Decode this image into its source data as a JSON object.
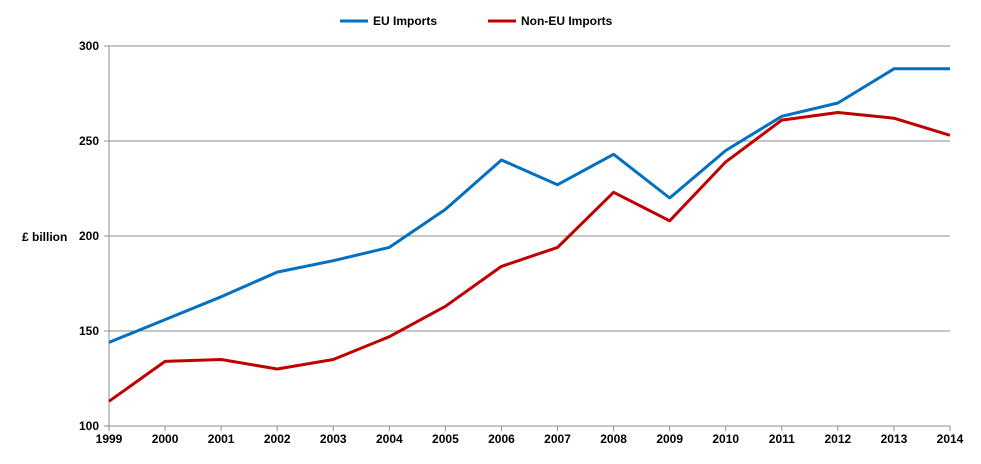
{
  "chart_data": {
    "type": "line",
    "title": "",
    "xlabel": "",
    "ylabel": "£ billion",
    "ylim": [
      100,
      300
    ],
    "yticks": [
      100,
      150,
      200,
      250,
      300
    ],
    "grid": true,
    "legend_position": "top",
    "x": [
      1999,
      2000,
      2001,
      2002,
      2003,
      2004,
      2005,
      2006,
      2007,
      2008,
      2009,
      2010,
      2011,
      2012,
      2013,
      2014
    ],
    "series": [
      {
        "name": "EU Imports",
        "color": "#0070c0",
        "values": [
          144,
          156,
          168,
          181,
          187,
          194,
          214,
          240,
          227,
          243,
          220,
          245,
          263,
          270,
          288,
          288
        ]
      },
      {
        "name": "Non-EU Imports",
        "color": "#c00000",
        "values": [
          113,
          134,
          135,
          130,
          135,
          147,
          163,
          184,
          194,
          223,
          208,
          239,
          261,
          265,
          262,
          253
        ]
      }
    ]
  }
}
